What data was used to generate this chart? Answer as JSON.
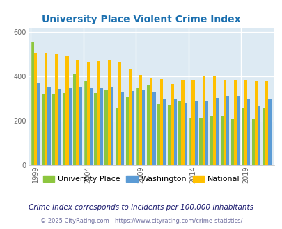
{
  "title": "University Place Violent Crime Index",
  "title_color": "#1a6faf",
  "subtitle": "Crime Index corresponds to incidents per 100,000 inhabitants",
  "footer": "© 2025 CityRating.com - https://www.cityrating.com/crime-statistics/",
  "years": [
    1999,
    2000,
    2001,
    2002,
    2003,
    2004,
    2005,
    2006,
    2007,
    2008,
    2009,
    2010,
    2011,
    2012,
    2013,
    2014,
    2015,
    2016,
    2017,
    2018,
    2019,
    2020,
    2021
  ],
  "university_place": [
    554,
    322,
    320,
    325,
    412,
    377,
    325,
    340,
    257,
    307,
    347,
    361,
    273,
    269,
    290,
    211,
    211,
    221,
    221,
    210,
    258,
    210,
    258
  ],
  "washington": [
    370,
    350,
    342,
    345,
    350,
    347,
    347,
    348,
    332,
    335,
    336,
    330,
    300,
    300,
    278,
    288,
    288,
    303,
    308,
    312,
    295,
    265,
    297
  ],
  "national": [
    507,
    507,
    500,
    494,
    475,
    463,
    470,
    472,
    465,
    430,
    407,
    392,
    388,
    365,
    383,
    382,
    398,
    400,
    383,
    380,
    380,
    377,
    379
  ],
  "color_up": "#8dc63f",
  "color_washington": "#5b9bd5",
  "color_national": "#ffc000",
  "background_color": "#ddeaf3",
  "ylim": [
    0,
    620
  ],
  "yticks": [
    0,
    200,
    400,
    600
  ],
  "xtick_years": [
    1999,
    2004,
    2009,
    2014,
    2019
  ],
  "bar_width": 0.28,
  "legend_labels": [
    "University Place",
    "Washington",
    "National"
  ],
  "legend_colors": [
    "#8dc63f",
    "#5b9bd5",
    "#ffc000"
  ],
  "subtitle_color": "#1a1a6e",
  "footer_color": "#7070a0"
}
